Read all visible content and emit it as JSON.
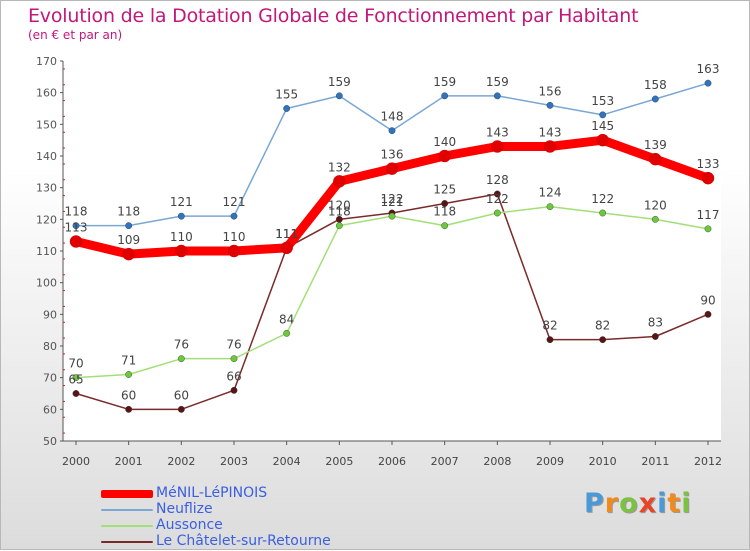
{
  "chart_data": {
    "type": "line",
    "title": "Evolution de la Dotation Globale de Fonctionnement par Habitant",
    "subtitle": "(en € et par an)",
    "xlabel": "",
    "ylabel": "",
    "ylim": [
      50,
      170
    ],
    "yticks": [
      50,
      60,
      70,
      80,
      90,
      100,
      110,
      120,
      130,
      140,
      150,
      160,
      170
    ],
    "categories": [
      "2000",
      "2001",
      "2002",
      "2003",
      "2004",
      "2005",
      "2006",
      "2007",
      "2008",
      "2009",
      "2010",
      "2011",
      "2012"
    ],
    "legend_position": "bottom-left",
    "series": [
      {
        "name": "Le Châtelet-sur-Retourne",
        "color": "#7a2a2a",
        "marker": "#5a1414",
        "values": [
          65,
          60,
          60,
          66,
          111,
          120,
          122,
          125,
          128,
          82,
          82,
          83,
          90
        ]
      },
      {
        "name": "Aussonce",
        "color": "#a3df78",
        "marker": "#6cc83c",
        "values": [
          70,
          71,
          76,
          76,
          84,
          118,
          121,
          118,
          122,
          124,
          122,
          120,
          117
        ]
      },
      {
        "name": "Neuflize",
        "color": "#7aa7d4",
        "marker": "#2e74c0",
        "values": [
          118,
          118,
          121,
          121,
          155,
          159,
          148,
          159,
          159,
          156,
          153,
          158,
          163
        ]
      },
      {
        "name": "MéNIL-LéPINOIS",
        "color": "#ff0000",
        "marker": "#e00000",
        "values": [
          113,
          109,
          110,
          110,
          111,
          132,
          136,
          140,
          143,
          143,
          145,
          139,
          133
        ]
      }
    ],
    "legend_order": [
      3,
      2,
      1,
      0
    ]
  },
  "logo": {
    "letters": [
      "P",
      "r",
      "o",
      "x",
      "i",
      "t",
      "i"
    ],
    "colors": [
      "#4a9ad8",
      "#f08a1c",
      "#7cc142",
      "#e8442a",
      "#4a9ad8",
      "#f08a1c",
      "#7cc142"
    ]
  }
}
